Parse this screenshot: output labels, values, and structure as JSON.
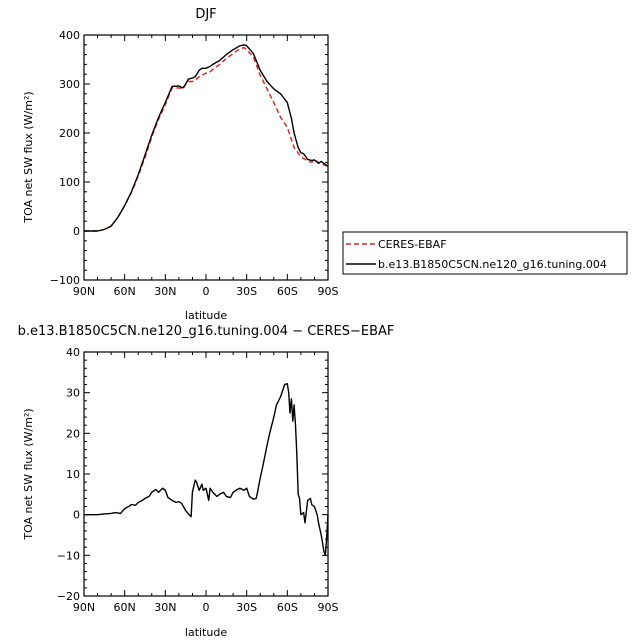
{
  "chart_data": [
    {
      "type": "line",
      "title": "DJF",
      "xlabel": "latitude",
      "ylabel": "TOA net SW flux (W/m²)",
      "xlim": [
        90,
        -90
      ],
      "ylim": [
        -100,
        400
      ],
      "xticks": [
        90,
        60,
        30,
        0,
        -30,
        -60,
        -90
      ],
      "xtick_labels": [
        "90N",
        "60N",
        "30N",
        "0",
        "30S",
        "60S",
        "90S"
      ],
      "yticks": [
        -100,
        0,
        100,
        200,
        300,
        400
      ],
      "ytick_labels": [
        "−100",
        "0",
        "100",
        "200",
        "300",
        "400"
      ],
      "legend": "right",
      "series": [
        {
          "name": "CERES-EBAF",
          "color": "#e0201b",
          "dash": "dashed",
          "x": [
            90,
            80,
            75,
            70,
            65,
            60,
            55,
            50,
            45,
            40,
            35,
            30,
            25,
            20,
            17,
            15,
            13,
            10,
            8,
            5,
            3,
            0,
            -3,
            -5,
            -10,
            -15,
            -20,
            -25,
            -28,
            -30,
            -35,
            -40,
            -45,
            -50,
            -55,
            -60,
            -65,
            -70,
            -72,
            -75,
            -78,
            -80,
            -83,
            -85,
            -88,
            -90
          ],
          "y": [
            0,
            0,
            3,
            10,
            28,
            52,
            78,
            112,
            150,
            192,
            228,
            258,
            292,
            292,
            290,
            300,
            305,
            305,
            308,
            315,
            318,
            322,
            325,
            330,
            340,
            352,
            362,
            372,
            374,
            370,
            355,
            318,
            290,
            262,
            232,
            212,
            170,
            152,
            148,
            143,
            140,
            145,
            140,
            137,
            134,
            132
          ]
        },
        {
          "name": "b.e13.B1850C5CN.ne120_g16.tuning.004",
          "color": "#000000",
          "dash": "solid",
          "x": [
            90,
            80,
            75,
            70,
            65,
            60,
            55,
            50,
            45,
            40,
            35,
            30,
            25,
            20,
            17,
            15,
            13,
            10,
            8,
            5,
            3,
            0,
            -3,
            -5,
            -10,
            -15,
            -20,
            -25,
            -28,
            -30,
            -35,
            -40,
            -45,
            -50,
            -55,
            -60,
            -63,
            -65,
            -68,
            -70,
            -72,
            -75,
            -78,
            -80,
            -83,
            -85,
            -88,
            -90
          ],
          "y": [
            0,
            0,
            3,
            10,
            28,
            52,
            80,
            115,
            155,
            196,
            232,
            262,
            295,
            296,
            292,
            300,
            310,
            312,
            315,
            328,
            332,
            332,
            336,
            340,
            348,
            360,
            370,
            378,
            380,
            378,
            362,
            328,
            305,
            290,
            280,
            262,
            230,
            200,
            170,
            160,
            158,
            146,
            144,
            145,
            138,
            142,
            136,
            132
          ]
        }
      ]
    },
    {
      "type": "line",
      "title": "b.e13.B1850C5CN.ne120_g16.tuning.004 − CERES−EBAF",
      "xlabel": "latitude",
      "ylabel": "TOA net SW flux (W/m²)",
      "xlim": [
        90,
        -90
      ],
      "ylim": [
        -20,
        40
      ],
      "xticks": [
        90,
        60,
        30,
        0,
        -30,
        -60,
        -90
      ],
      "xtick_labels": [
        "90N",
        "60N",
        "30N",
        "0",
        "30S",
        "60S",
        "90S"
      ],
      "yticks": [
        -20,
        -10,
        0,
        10,
        20,
        30,
        40
      ],
      "ytick_labels": [
        "−20",
        "−10",
        "0",
        "10",
        "20",
        "30",
        "40"
      ],
      "series": [
        {
          "color": "#000000",
          "dash": "solid",
          "x": [
            90,
            80,
            75,
            70,
            67,
            63,
            60,
            57,
            55,
            52,
            50,
            47,
            45,
            42,
            40,
            37,
            35,
            32,
            30,
            28,
            25,
            22,
            20,
            18,
            15,
            13,
            11,
            10,
            8,
            7,
            5,
            3,
            2,
            0,
            -2,
            -3,
            -5,
            -8,
            -10,
            -13,
            -15,
            -18,
            -20,
            -23,
            -25,
            -28,
            -30,
            -32,
            -35,
            -37,
            -38,
            -40,
            -42,
            -45,
            -47,
            -50,
            -52,
            -55,
            -57,
            -58,
            -60,
            -61,
            -62,
            -63,
            -64,
            -65,
            -66,
            -67,
            -68,
            -69,
            -70,
            -72,
            -73,
            -75,
            -77,
            -78,
            -80,
            -82,
            -83,
            -85,
            -86,
            -87,
            -88,
            -89,
            -90
          ],
          "y": [
            0,
            0,
            0.2,
            0.3,
            0.5,
            0.3,
            1.5,
            2.0,
            2.5,
            2.3,
            3.0,
            3.5,
            4.0,
            4.5,
            5.5,
            6.2,
            5.5,
            6.5,
            6.0,
            4.2,
            3.5,
            3.0,
            3.2,
            2.8,
            1.0,
            0.2,
            -0.5,
            5.5,
            8.5,
            8.0,
            6.0,
            7.5,
            6.0,
            6.5,
            3.5,
            6.5,
            5.5,
            4.5,
            5.0,
            5.5,
            4.5,
            4.2,
            5.5,
            6.2,
            6.5,
            6.0,
            6.5,
            4.5,
            3.8,
            4.0,
            5.5,
            9.0,
            12.0,
            17.0,
            20.0,
            24.0,
            27.0,
            29.0,
            31.0,
            32.0,
            32.2,
            30.0,
            25.0,
            28.5,
            23.0,
            27.0,
            22.0,
            15.0,
            5.0,
            4.0,
            0.0,
            0.5,
            -2.0,
            3.5,
            4.0,
            2.5,
            2.0,
            0.0,
            -2.0,
            -5.0,
            -7.0,
            -9.0,
            -10.0,
            -6.0,
            0.0
          ]
        }
      ]
    }
  ]
}
